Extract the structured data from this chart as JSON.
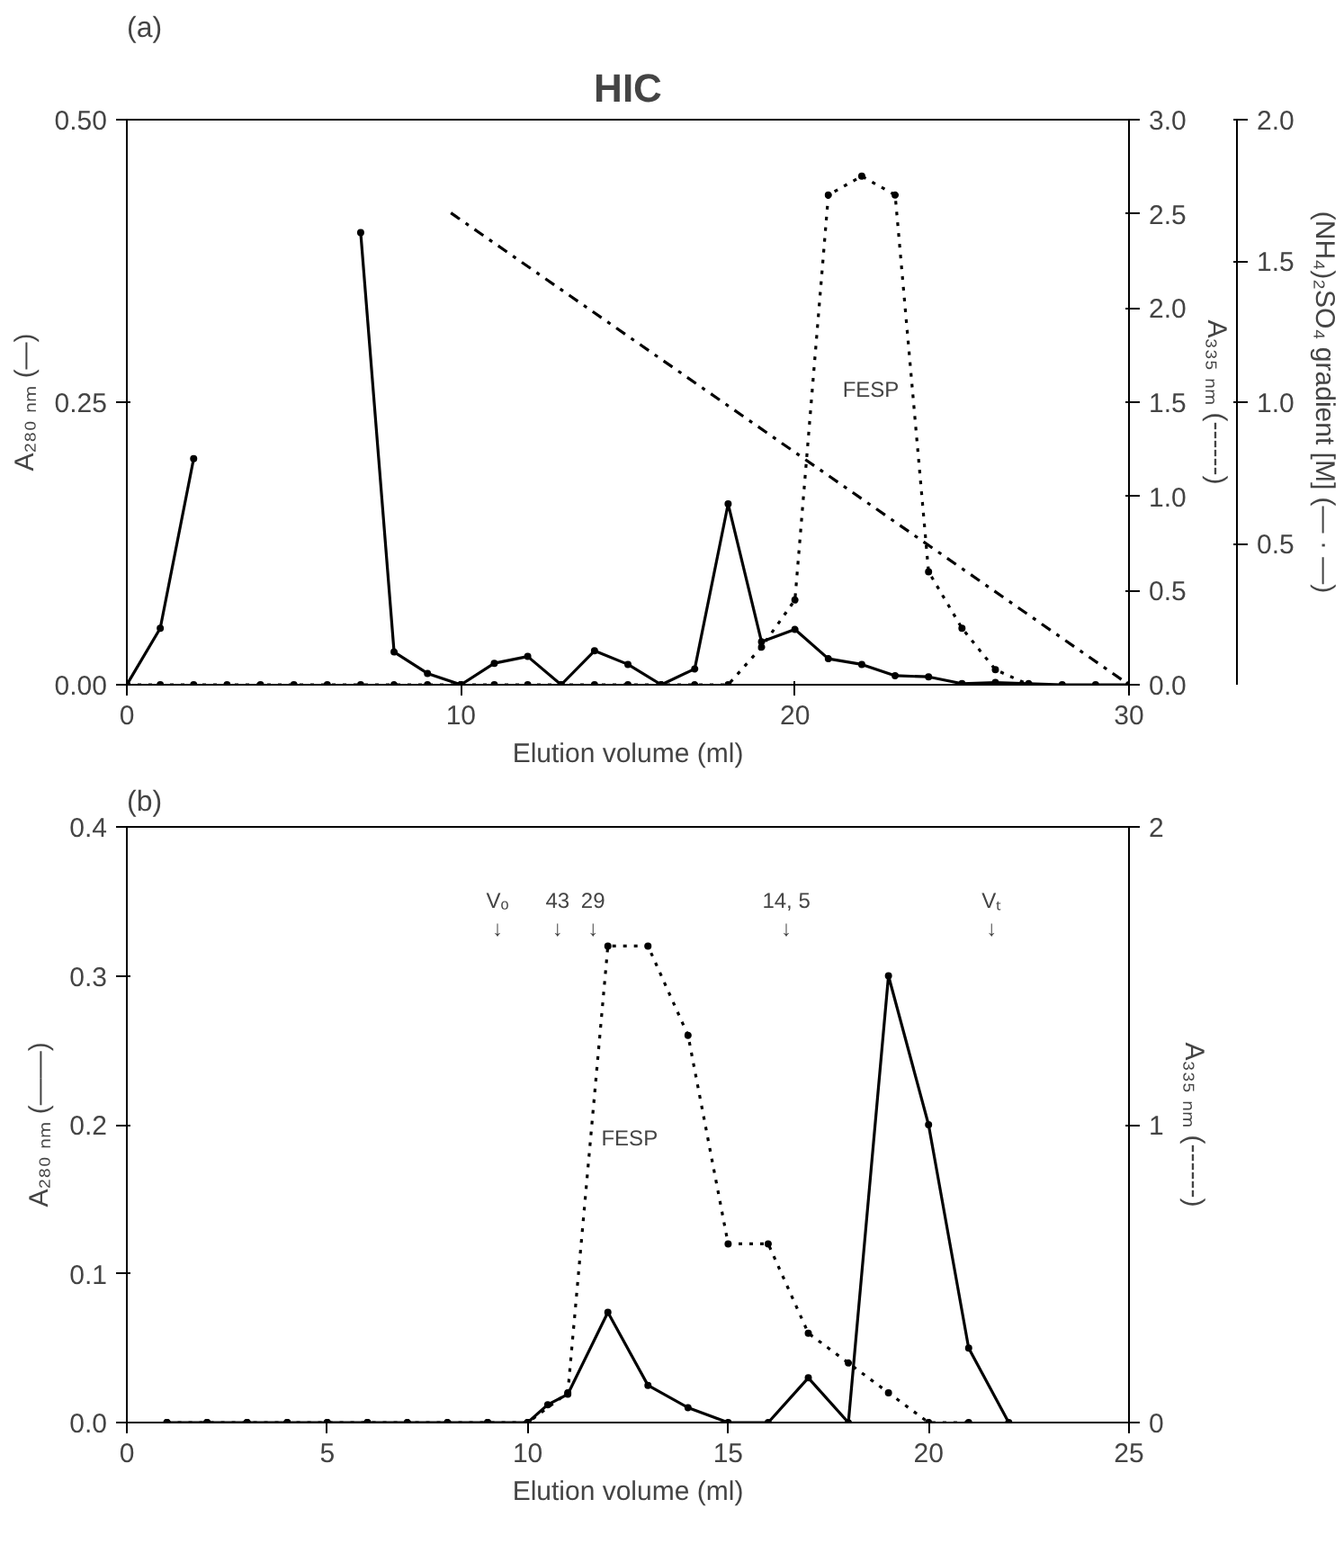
{
  "chart_data": [
    {
      "type": "line",
      "title": "HIC",
      "xlabel": "Elution volume (ml)",
      "ylabel": "A₂₈₀ ₙₘ (—)",
      "y2label": "A₃₃₅ ₙₘ (------)",
      "y3label": "(NH₄)₂SO₄ gradient [M] (— · —)",
      "xlim": [
        0,
        30
      ],
      "xticks": [
        0,
        10,
        20,
        30
      ],
      "ylim": [
        0,
        0.5
      ],
      "yticks": [
        {
          "value": 0,
          "label": "0.00"
        },
        {
          "value": 0.25,
          "label": "0.25"
        },
        {
          "value": 0.5,
          "label": "0.50"
        }
      ],
      "y2lim": [
        0,
        3
      ],
      "y2ticks": [
        {
          "value": 0,
          "label": "0.0"
        },
        {
          "value": 0.5,
          "label": "0.5"
        },
        {
          "value": 1,
          "label": "1.0"
        },
        {
          "value": 1.5,
          "label": "1.5"
        },
        {
          "value": 2,
          "label": "2.0"
        },
        {
          "value": 2.5,
          "label": "2.5"
        },
        {
          "value": 3,
          "label": "3.0"
        }
      ],
      "y3lim": [
        0,
        2
      ],
      "y3ticks": [
        {
          "value": 0.5,
          "label": "0.5"
        },
        {
          "value": 1,
          "label": "1.0"
        },
        {
          "value": 1.5,
          "label": "1.5"
        },
        {
          "value": 2,
          "label": "2.0"
        }
      ],
      "grid": false,
      "annotations": [
        "(a)",
        "FESP"
      ],
      "series": [
        {
          "color": "#000000",
          "line_style": "solid",
          "marker": "circle",
          "x": [
            0,
            1,
            2,
            4.5,
            7,
            8,
            9,
            10,
            11,
            12,
            13,
            14,
            15,
            16,
            17,
            18,
            19,
            20,
            21,
            22,
            23,
            24,
            25,
            26,
            27,
            28,
            29,
            30
          ],
          "values": [
            0,
            0.05,
            0.2,
            null,
            0.4,
            0.029,
            0.01,
            0,
            0.019,
            0.025,
            0,
            0.03,
            0.018,
            0,
            0.014,
            0.16,
            0.038,
            0.049,
            0.023,
            0.018,
            0.008,
            0.007,
            0.001,
            0.002,
            0.001,
            0,
            0,
            0
          ]
        },
        {
          "color": "#000000",
          "line_style": "dotted",
          "marker": "circle",
          "axis": "y2",
          "x": [
            0,
            1,
            2,
            3,
            4,
            5,
            6,
            7,
            8,
            9,
            10,
            11,
            12,
            13,
            14,
            15,
            16,
            17,
            18,
            19,
            20,
            21,
            22,
            23,
            24,
            25,
            26,
            27
          ],
          "values": [
            0,
            0,
            0,
            0,
            0,
            0,
            0,
            0,
            0,
            0,
            0,
            0,
            0,
            0,
            0,
            0,
            0,
            0,
            0,
            0.2,
            0.45,
            2.6,
            2.7,
            2.6,
            0.6,
            0.3,
            0.08,
            0
          ]
        },
        {
          "color": "#000000",
          "line_style": "dashdot",
          "marker": "none",
          "axis": "y3",
          "x": [
            9.7,
            30
          ],
          "values": [
            1.67,
            0
          ]
        }
      ]
    },
    {
      "type": "line",
      "xlabel": "Elution volume (ml)",
      "ylabel": "A₂₈₀ ₙₘ (——)",
      "y2label": "A₃₃₅ ₙₘ (------)",
      "xlim": [
        0,
        25
      ],
      "xticks": [
        0,
        5,
        10,
        15,
        20,
        25
      ],
      "ylim": [
        0,
        0.4
      ],
      "yticks": [
        {
          "value": 0,
          "label": "0.0"
        },
        {
          "value": 0.1,
          "label": "0.1"
        },
        {
          "value": 0.2,
          "label": "0.2"
        },
        {
          "value": 0.3,
          "label": "0.3"
        },
        {
          "value": 0.4,
          "label": "0.4"
        }
      ],
      "y2lim": [
        0,
        2
      ],
      "y2ticks": [
        0,
        1,
        2
      ],
      "grid": false,
      "annotations": [
        "(b)",
        "FESP",
        "Vₒ\n↓",
        "43\n↓",
        "29\n↓",
        "14, 5\n↓",
        "Vₜ\n↓"
      ],
      "series": [
        {
          "color": "#000000",
          "line_style": "solid",
          "marker": "circle",
          "x": [
            1,
            2,
            3,
            4,
            5,
            6,
            7,
            8,
            9,
            10,
            10.5,
            11,
            12,
            13,
            14,
            15,
            16,
            17,
            18,
            19,
            20,
            21,
            22
          ],
          "values": [
            0,
            0,
            0,
            0,
            0,
            0,
            0,
            0,
            0,
            0,
            0.012,
            0.019,
            0.074,
            0.025,
            0.01,
            0,
            0,
            0.03,
            0,
            0.3,
            0.2,
            0.05,
            0
          ]
        },
        {
          "color": "#000000",
          "line_style": "dotted",
          "marker": "circle",
          "axis": "y2",
          "x": [
            1,
            2,
            3,
            4,
            5,
            6,
            7,
            8,
            9,
            10,
            11,
            12,
            13,
            14,
            15,
            16,
            17,
            18,
            19,
            20,
            21
          ],
          "values": [
            0,
            0,
            0,
            0,
            0,
            0,
            0,
            0,
            0,
            0,
            0.1,
            1.6,
            1.6,
            1.3,
            0.6,
            0.6,
            0.3,
            0.2,
            0.1,
            0,
            0
          ]
        }
      ]
    }
  ]
}
